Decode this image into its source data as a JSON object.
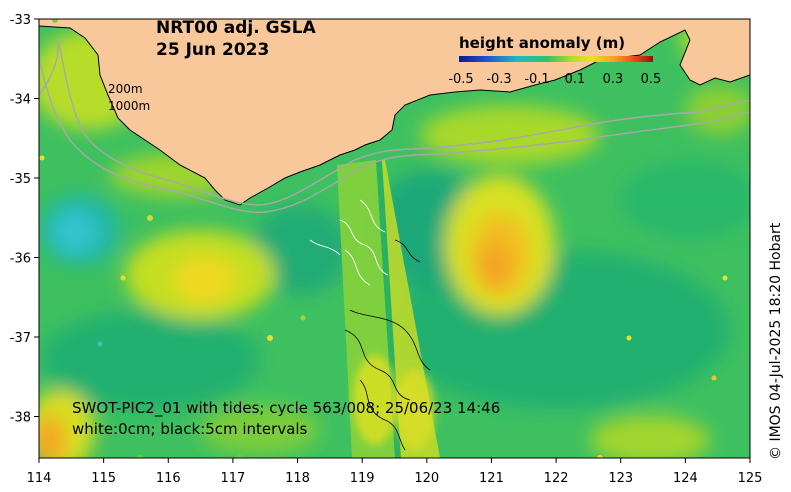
{
  "title": {
    "line1": "NRT00 adj. GSLA",
    "line2": "25 Jun 2023"
  },
  "legend": {
    "label": "height anomaly (m)",
    "ticks": [
      "-0.5",
      "-0.3",
      "-0.1",
      "0.1",
      "0.3",
      "0.5"
    ],
    "colors": [
      "#0a1a8c",
      "#1a55d0",
      "#1fb8c4",
      "#2ec26a",
      "#b6d82a",
      "#f0e020",
      "#f4a020",
      "#e8501a",
      "#9a0f10"
    ]
  },
  "contour_labels": {
    "shelf": "200m",
    "slope": "1000m"
  },
  "axes": {
    "x_ticks": [
      "114",
      "115",
      "116",
      "117",
      "118",
      "119",
      "120",
      "121",
      "122",
      "123",
      "124",
      "125"
    ],
    "y_ticks": [
      "-33",
      "-34",
      "-35",
      "-36",
      "-37",
      "-38"
    ]
  },
  "swot": {
    "line1": "SWOT-PIC2_01 with tides; cycle 563/008; 25/06/23 14:46",
    "line2": "white:0cm; black:5cm intervals"
  },
  "credit": "© IMOS 04-Jul-2025 18:20 Hobart",
  "colors": {
    "land": "#f8c89a",
    "sea_base": "#3ec060",
    "coast": "#000000",
    "bathy": "#a8a8a8"
  }
}
